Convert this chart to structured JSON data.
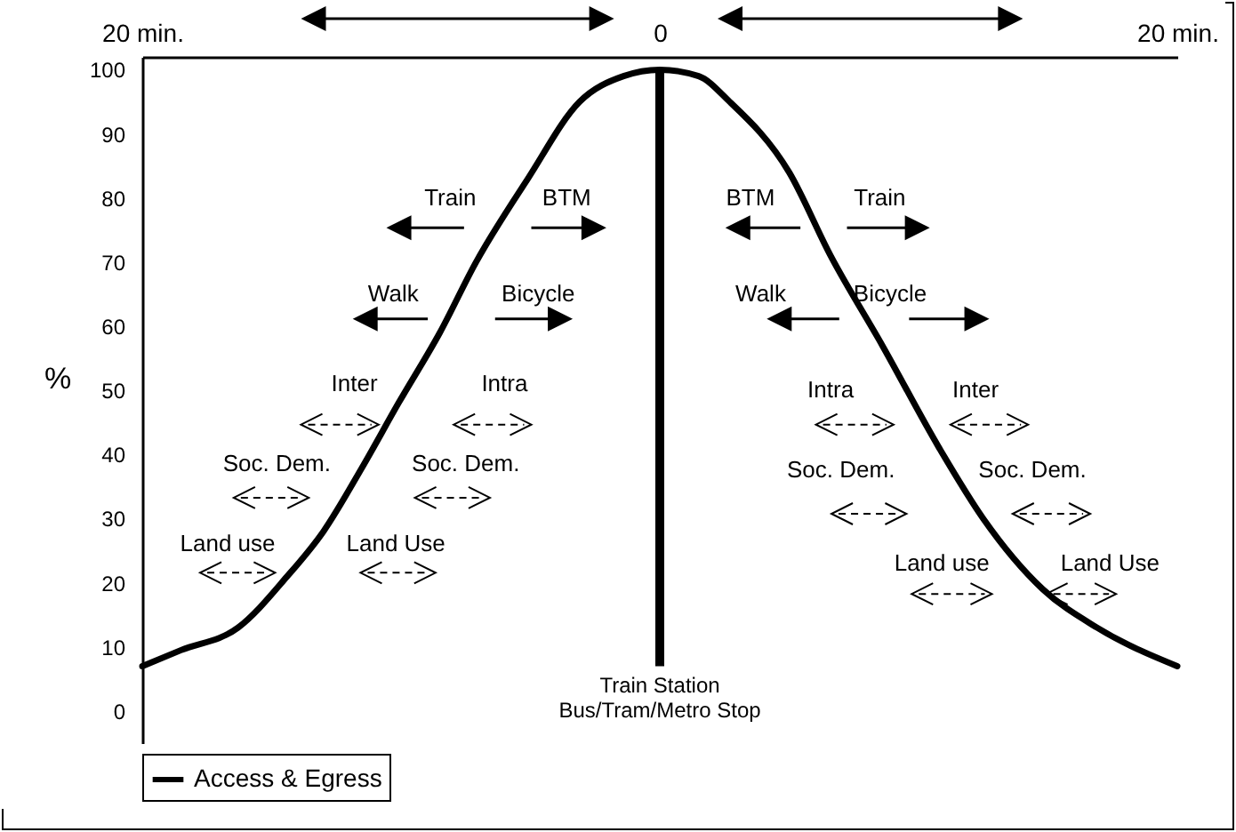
{
  "chart_data": {
    "type": "line",
    "ylabel": "%",
    "x": [
      -20,
      -18.5,
      -16.3,
      -14.4,
      -13,
      -11.5,
      -10.1,
      -8.5,
      -7.1,
      -5.1,
      -3.1,
      -1.4,
      0,
      1.5,
      2.7,
      5.0,
      6.6,
      8.6,
      10.8,
      12.5,
      14.8,
      16.9,
      20
    ],
    "series": [
      {
        "name": "Access & Egress",
        "color": "#000000",
        "values": [
          7,
          9.5,
          13,
          21,
          28,
          38,
          48,
          59,
          70,
          83,
          95,
          99,
          100,
          99,
          95,
          84,
          71,
          57,
          41,
          30,
          19,
          13,
          7
        ]
      }
    ],
    "xlim": [
      -20,
      20
    ],
    "xticks": [
      {
        "value": -20,
        "label": "20 min."
      },
      0,
      {
        "value": 20,
        "label": "20 min."
      }
    ],
    "ylim": [
      -5,
      102
    ],
    "yticks": [
      0,
      10,
      20,
      30,
      40,
      50,
      60,
      70,
      80,
      90,
      100
    ],
    "ref_lines": [
      {
        "axis": "x",
        "value": 0,
        "label": "Train Station\nBus/Tram/Metro Stop",
        "color": "#000000"
      }
    ],
    "annotations": [
      "Train",
      "BTM",
      "BTM",
      "Train",
      "Walk",
      "Bicycle",
      "Walk",
      "Bicycle",
      "Inter",
      "Intra",
      "Intra",
      "Inter",
      "Soc. Dem.",
      "Soc. Dem.",
      "Soc. Dem.",
      "Soc. Dem.",
      "Land use",
      "Land Use",
      "Land use",
      "Land Use"
    ],
    "legend": "bottom",
    "marker": "none",
    "line_style": "solid",
    "grid": false
  }
}
